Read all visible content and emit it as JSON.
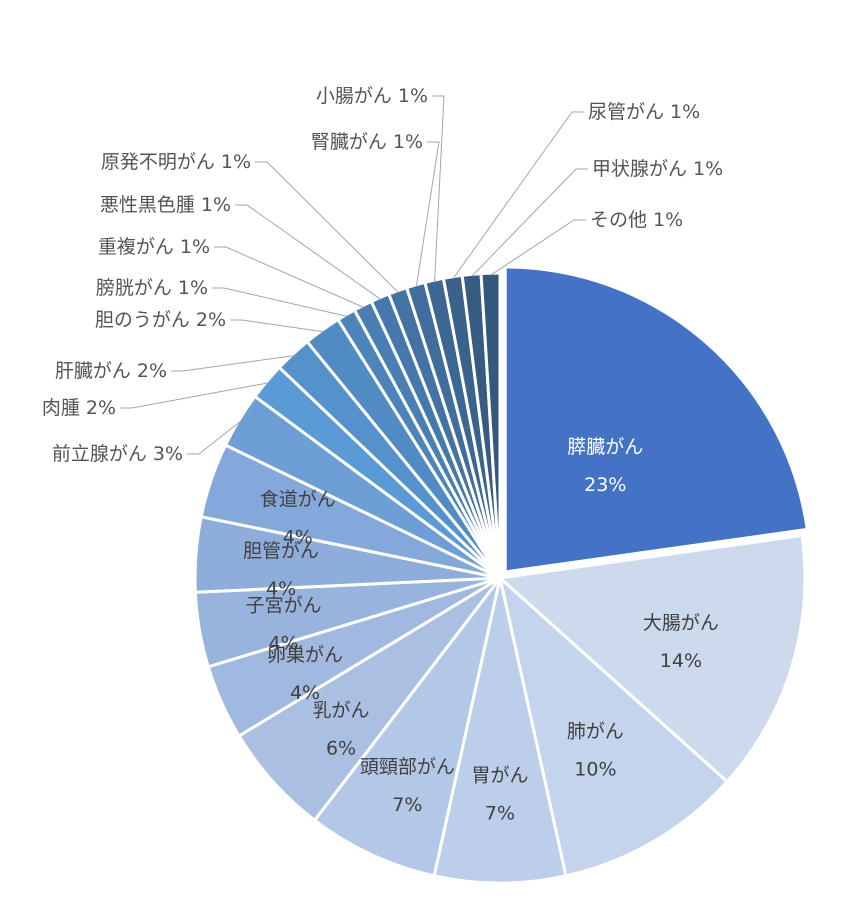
{
  "chart_data": {
    "type": "pie",
    "title": "",
    "unit": "%",
    "slices": [
      {
        "label": "膵臓がん",
        "value": 23,
        "color": "#4472c4",
        "label_pos": "inside"
      },
      {
        "label": "大腸がん",
        "value": 14,
        "color": "#cddaee",
        "label_pos": "inside"
      },
      {
        "label": "肺がん",
        "value": 10,
        "color": "#c4d4ec",
        "label_pos": "inside"
      },
      {
        "label": "胃がん",
        "value": 7,
        "color": "#bccee9",
        "label_pos": "inside"
      },
      {
        "label": "頭頸部がん",
        "value": 7,
        "color": "#b3c7e6",
        "label_pos": "inside"
      },
      {
        "label": "乳がん",
        "value": 6,
        "color": "#aac0e3",
        "label_pos": "inside"
      },
      {
        "label": "卵巣がん",
        "value": 4,
        "color": "#a1b9e0",
        "label_pos": "inside"
      },
      {
        "label": "子宮がん",
        "value": 4,
        "color": "#98b3dd",
        "label_pos": "inside"
      },
      {
        "label": "胆管がん",
        "value": 4,
        "color": "#8fadda",
        "label_pos": "inside"
      },
      {
        "label": "食道がん",
        "value": 4,
        "color": "#84a8d9",
        "label_pos": "inside"
      },
      {
        "label": "前立腺がん",
        "value": 3,
        "color": "#6e9ed6",
        "label_pos": "outside"
      },
      {
        "label": "肉腫",
        "value": 2,
        "color": "#5b9bd5",
        "label_pos": "outside"
      },
      {
        "label": "肝臓がん",
        "value": 2,
        "color": "#5592cc",
        "label_pos": "outside"
      },
      {
        "label": "胆のうがん",
        "value": 2,
        "color": "#518bc3",
        "label_pos": "outside"
      },
      {
        "label": "膀胱がん",
        "value": 1,
        "color": "#4d85bb",
        "label_pos": "outside"
      },
      {
        "label": "重複がん",
        "value": 1,
        "color": "#4a7fb3",
        "label_pos": "outside"
      },
      {
        "label": "悪性黒色腫",
        "value": 1,
        "color": "#4679ab",
        "label_pos": "outside"
      },
      {
        "label": "原発不明がん",
        "value": 1,
        "color": "#4373a3",
        "label_pos": "outside"
      },
      {
        "label": "腎臓がん",
        "value": 1,
        "color": "#406d9b",
        "label_pos": "outside"
      },
      {
        "label": "小腸がん",
        "value": 1,
        "color": "#3d6793",
        "label_pos": "outside"
      },
      {
        "label": "尿管がん",
        "value": 1,
        "color": "#3a628b",
        "label_pos": "outside"
      },
      {
        "label": "甲状腺がん",
        "value": 1,
        "color": "#375c84",
        "label_pos": "outside"
      },
      {
        "label": "その他",
        "value": 1,
        "color": "#34577d",
        "label_pos": "outside"
      }
    ],
    "legend": "none"
  }
}
